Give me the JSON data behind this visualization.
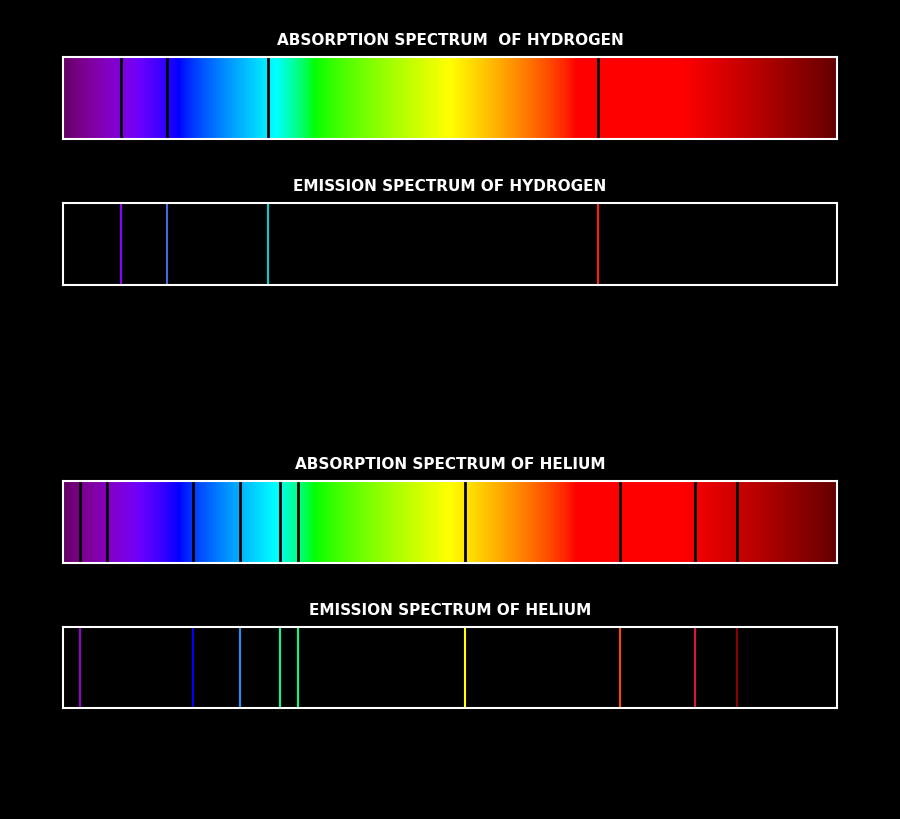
{
  "background_color": "#000000",
  "title_color": "#ffffff",
  "title_fontsize": 11,
  "title_fontweight": "bold",
  "figure_size": [
    9.0,
    8.19
  ],
  "dpi": 100,
  "spectrum_xlim": [
    380,
    780
  ],
  "hydrogen_absorption_title": "ABSORPTION SPECTRUM  OF HYDROGEN",
  "hydrogen_absorption_lines": [
    410.2,
    434.0,
    486.1,
    656.3
  ],
  "hydrogen_emission_title": "EMISSION SPECTRUM OF HYDROGEN",
  "hydrogen_emission_lines": [
    {
      "wavelength": 410.2,
      "color": "#8B00FF"
    },
    {
      "wavelength": 434.0,
      "color": "#4169E1"
    },
    {
      "wavelength": 486.1,
      "color": "#00CED1"
    },
    {
      "wavelength": 656.3,
      "color": "#FF2200"
    }
  ],
  "helium_absorption_title": "ABSORPTION SPECTRUM OF HELIUM",
  "helium_absorption_lines": [
    388.9,
    402.6,
    447.1,
    471.3,
    492.2,
    501.6,
    587.6,
    667.8,
    706.5,
    728.1
  ],
  "helium_emission_title": "EMISSION SPECTRUM OF HELIUM",
  "helium_emission_lines": [
    {
      "wavelength": 388.9,
      "color": "#9400D3"
    },
    {
      "wavelength": 447.1,
      "color": "#0000FF"
    },
    {
      "wavelength": 471.3,
      "color": "#1E90FF"
    },
    {
      "wavelength": 492.2,
      "color": "#00FA9A"
    },
    {
      "wavelength": 501.6,
      "color": "#00FF7F"
    },
    {
      "wavelength": 587.6,
      "color": "#FFFF00"
    },
    {
      "wavelength": 667.8,
      "color": "#FF4500"
    },
    {
      "wavelength": 706.5,
      "color": "#DC143C"
    },
    {
      "wavelength": 728.1,
      "color": "#8B0000"
    }
  ]
}
